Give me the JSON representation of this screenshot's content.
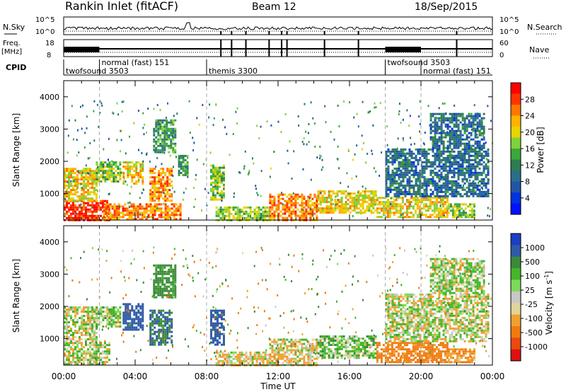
{
  "header": {
    "title": "Rankin Inlet (fitACF)",
    "beam": "Beam 12",
    "date": "18/Sep/2015"
  },
  "panels": {
    "nsky": {
      "label": "N.Sky",
      "right_label": "N.Search",
      "ticks_left": [
        "10^5",
        "10^0"
      ],
      "ticks_right": [
        "10^5",
        "10^0"
      ]
    },
    "freq": {
      "label_line1": "Freq.",
      "label_line2": "[MHz]",
      "right_label": "Nave",
      "ticks_left": [
        "18",
        "8"
      ],
      "ticks_right": [
        "60",
        "0"
      ]
    },
    "cpid": {
      "label": "CPID",
      "programs": [
        {
          "name": "twofsound 3503",
          "start_hour": 0.0
        },
        {
          "name": "normal (fast) 151",
          "start_hour": 2.0
        },
        {
          "name": "themis 3300",
          "start_hour": 8.0
        },
        {
          "name": "twofsound 3503",
          "start_hour": 18.0
        },
        {
          "name": "normal (fast) 151",
          "start_hour": 20.0
        }
      ]
    }
  },
  "colorbars": {
    "power": {
      "label": "Power [dB]",
      "tick_labels": [
        "28",
        "24",
        "20",
        "16",
        "12",
        "8",
        "4"
      ],
      "colors": [
        "#ff0000",
        "#ff3300",
        "#ff7700",
        "#ffb300",
        "#e8d400",
        "#7fd23a",
        "#3aa83a",
        "#2e7d52",
        "#2a6e8a",
        "#2255a8",
        "#0033dd",
        "#0011ff"
      ]
    },
    "velocity": {
      "label": "Velocity [m s",
      "label_sup": "-1",
      "label_end": "]",
      "tick_labels": [
        "1000",
        "500",
        "100",
        "25",
        "-25",
        "-100",
        "-500",
        "-1000"
      ],
      "colors": [
        "#1a3fc4",
        "#2f5aa6",
        "#3a8a3a",
        "#45b52a",
        "#7ed95a",
        "#c8c8c8",
        "#e0d49a",
        "#f0a030",
        "#f07a10",
        "#e84a10",
        "#dd1111"
      ]
    }
  },
  "chart_data": [
    {
      "type": "heatmap",
      "title": "Power",
      "xlabel": "Time UT",
      "ylabel": "Slant Range [km]",
      "xlim": [
        0,
        24
      ],
      "ylim": [
        180,
        4500
      ],
      "y_ticks": [
        "4000",
        "3000",
        "2000",
        "1000"
      ],
      "x_ticks": [
        "00:00",
        "04:00",
        "08:00",
        "12:00",
        "16:00",
        "20:00",
        "00:00"
      ],
      "mode_boundaries_hours": [
        2.0,
        8.0,
        18.0,
        20.0
      ],
      "patches": [
        {
          "t0": 0.0,
          "t1": 2.6,
          "r0": 200,
          "r1": 800,
          "value": 28
        },
        {
          "t0": 0.0,
          "t1": 1.8,
          "r0": 800,
          "r1": 1800,
          "value": 20
        },
        {
          "t0": 1.8,
          "t1": 3.2,
          "r0": 1400,
          "r1": 2000,
          "value": 16
        },
        {
          "t0": 3.3,
          "t1": 4.4,
          "r0": 1300,
          "r1": 2000,
          "value": 20
        },
        {
          "t0": 4.8,
          "t1": 6.0,
          "r0": 800,
          "r1": 1800,
          "value": 24
        },
        {
          "t0": 5.0,
          "t1": 6.3,
          "r0": 2300,
          "r1": 3300,
          "value": 12
        },
        {
          "t0": 6.4,
          "t1": 6.9,
          "r0": 1600,
          "r1": 2200,
          "value": 12
        },
        {
          "t0": 2.2,
          "t1": 6.5,
          "r0": 200,
          "r1": 700,
          "value": 24
        },
        {
          "t0": 8.2,
          "t1": 9.0,
          "r0": 800,
          "r1": 1900,
          "value": 16
        },
        {
          "t0": 8.5,
          "t1": 11.5,
          "r0": 200,
          "r1": 600,
          "value": 16
        },
        {
          "t0": 11.5,
          "t1": 14.2,
          "r0": 200,
          "r1": 1000,
          "value": 24
        },
        {
          "t0": 14.2,
          "t1": 17.5,
          "r0": 400,
          "r1": 1100,
          "value": 20
        },
        {
          "t0": 17.5,
          "t1": 21.5,
          "r0": 300,
          "r1": 900,
          "value": 20
        },
        {
          "t0": 21.5,
          "t1": 23.0,
          "r0": 300,
          "r1": 700,
          "value": 16
        },
        {
          "t0": 18.0,
          "t1": 23.8,
          "r0": 900,
          "r1": 2400,
          "value": 8
        },
        {
          "t0": 20.5,
          "t1": 23.5,
          "r0": 2400,
          "r1": 3500,
          "value": 8
        }
      ]
    },
    {
      "type": "heatmap",
      "title": "Velocity",
      "xlabel": "Time UT",
      "ylabel": "Slant Range [km]",
      "xlim": [
        0,
        24
      ],
      "ylim": [
        180,
        4500
      ],
      "y_ticks": [
        "4000",
        "3000",
        "2000",
        "1000"
      ],
      "x_ticks": [
        "00:00",
        "04:00",
        "08:00",
        "12:00",
        "16:00",
        "20:00",
        "00:00"
      ],
      "mode_boundaries_hours": [
        2.0,
        8.0,
        18.0,
        20.0
      ],
      "patches": [
        {
          "t0": 0.0,
          "t1": 2.6,
          "r0": 200,
          "r1": 900,
          "value": 0
        },
        {
          "t0": 0.0,
          "t1": 1.8,
          "r0": 900,
          "r1": 2000,
          "value": 0
        },
        {
          "t0": 1.8,
          "t1": 3.2,
          "r0": 1400,
          "r1": 2000,
          "value": 60
        },
        {
          "t0": 3.3,
          "t1": 4.4,
          "r0": 1300,
          "r1": 2100,
          "value": 700
        },
        {
          "t0": 4.8,
          "t1": 6.0,
          "r0": 800,
          "r1": 1900,
          "value": 500
        },
        {
          "t0": 5.0,
          "t1": 6.3,
          "r0": 2300,
          "r1": 3300,
          "value": 300
        },
        {
          "t0": 8.2,
          "t1": 9.0,
          "r0": 800,
          "r1": 1900,
          "value": 700
        },
        {
          "t0": 8.5,
          "t1": 11.5,
          "r0": 200,
          "r1": 600,
          "value": -60
        },
        {
          "t0": 11.5,
          "t1": 14.2,
          "r0": 200,
          "r1": 1000,
          "value": -60
        },
        {
          "t0": 14.2,
          "t1": 17.5,
          "r0": 400,
          "r1": 1100,
          "value": 80
        },
        {
          "t0": 17.5,
          "t1": 21.5,
          "r0": 300,
          "r1": 900,
          "value": -300
        },
        {
          "t0": 21.5,
          "t1": 23.0,
          "r0": 300,
          "r1": 700,
          "value": -200
        },
        {
          "t0": 18.0,
          "t1": 23.8,
          "r0": 900,
          "r1": 2400,
          "value": 0
        },
        {
          "t0": 20.5,
          "t1": 23.5,
          "r0": 2400,
          "r1": 3500,
          "value": 40
        }
      ]
    }
  ]
}
